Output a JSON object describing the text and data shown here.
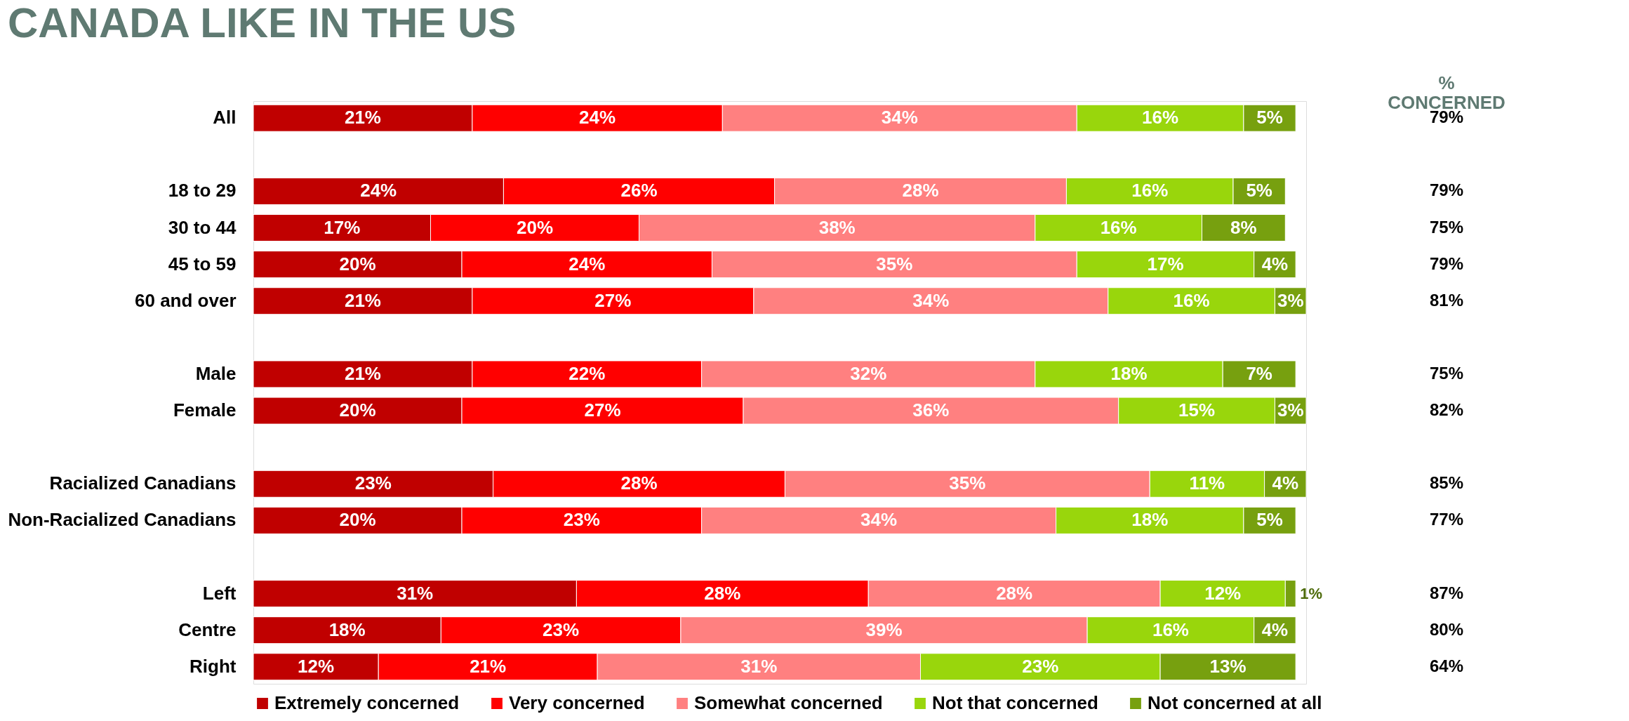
{
  "chart_data": {
    "type": "bar",
    "orientation": "horizontal",
    "stacked": true,
    "title": "CANADA LIKE IN THE US",
    "categories": [
      "All",
      null,
      "18 to 29",
      "30 to 44",
      "45 to 59",
      "60 and over",
      null,
      "Male",
      "Female",
      null,
      "Racialized Canadians",
      "Non-Racialized Canadians",
      null,
      "Left",
      "Centre",
      "Right"
    ],
    "series": [
      {
        "name": "Extremely concerned",
        "color": "#c00000",
        "values": [
          21,
          null,
          24,
          17,
          20,
          21,
          null,
          21,
          20,
          null,
          23,
          20,
          null,
          31,
          18,
          12
        ],
        "value_labels": [
          "21%",
          null,
          "24%",
          "17%",
          "20%",
          "21%",
          null,
          "21%",
          "20%",
          null,
          "23%",
          "20%",
          null,
          "31%",
          "18%",
          "12%"
        ]
      },
      {
        "name": "Very concerned",
        "color": "#ff0000",
        "values": [
          24,
          null,
          26,
          20,
          24,
          27,
          null,
          22,
          27,
          null,
          28,
          23,
          null,
          28,
          23,
          21
        ],
        "value_labels": [
          "24%",
          null,
          "26%",
          "20%",
          "24%",
          "27%",
          null,
          "22%",
          "27%",
          null,
          "28%",
          "23%",
          null,
          "28%",
          "23%",
          "21%"
        ]
      },
      {
        "name": "Somewhat concerned",
        "color": "#ff8080",
        "values": [
          34,
          null,
          28,
          38,
          35,
          34,
          null,
          32,
          36,
          null,
          35,
          34,
          null,
          28,
          39,
          31
        ],
        "value_labels": [
          "34%",
          null,
          "28%",
          "38%",
          "35%",
          "34%",
          null,
          "32%",
          "36%",
          null,
          "35%",
          "34%",
          null,
          "28%",
          "39%",
          "31%"
        ]
      },
      {
        "name": "Not that concerned",
        "color": "#99d60c",
        "values": [
          16,
          null,
          16,
          16,
          17,
          16,
          null,
          18,
          15,
          null,
          11,
          18,
          null,
          12,
          16,
          23
        ],
        "value_labels": [
          "16%",
          null,
          "16%",
          "16%",
          "17%",
          "16%",
          null,
          "18%",
          "15%",
          null,
          "11%",
          "18%",
          null,
          "12%",
          "16%",
          "23%"
        ]
      },
      {
        "name": "Not concerned at all",
        "color": "#77a00f",
        "values": [
          5,
          null,
          5,
          8,
          4,
          3,
          null,
          7,
          3,
          null,
          4,
          5,
          null,
          1,
          4,
          13
        ],
        "value_labels": [
          "5%",
          null,
          "5%",
          "8%",
          "4%",
          "3%",
          null,
          "7%",
          "3%",
          null,
          "4%",
          "5%",
          null,
          "1%",
          "4%",
          "13%"
        ]
      }
    ],
    "annotations": [
      "% CONCERNED",
      "79%",
      "79%",
      "75%",
      "79%",
      "81%",
      "75%",
      "82%",
      "85%",
      "77%",
      "87%",
      "80%",
      "64%"
    ],
    "xlim": [
      0,
      101
    ],
    "tick_labels": "y",
    "grid": false,
    "legend": "bottom"
  }
}
